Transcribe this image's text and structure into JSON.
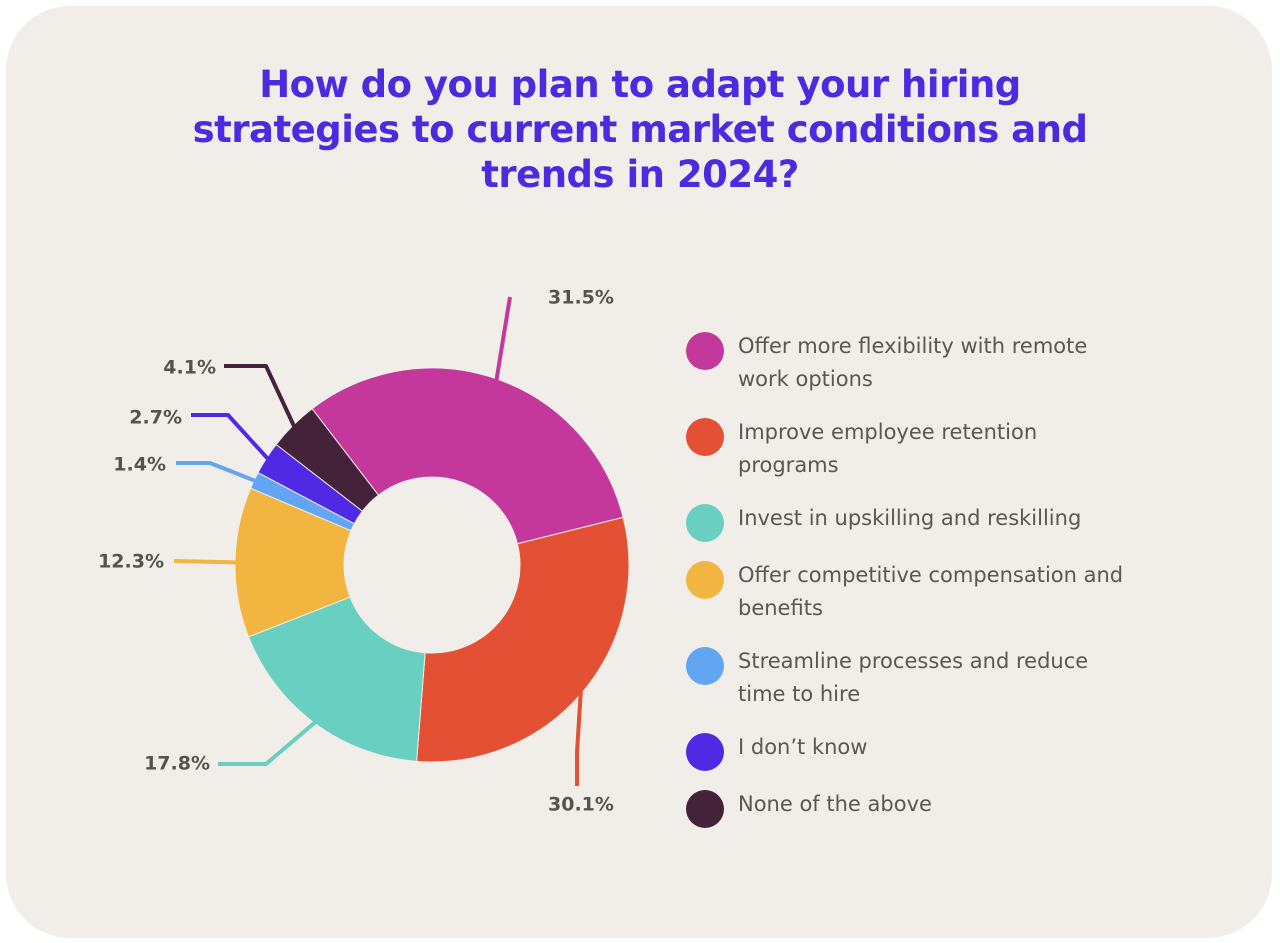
{
  "colors": {
    "background": "#f1eeea",
    "title": "#4b2ae0",
    "label_text": "#55534f"
  },
  "chart_data": {
    "type": "pie",
    "donut": true,
    "title": "How do you plan to adapt your hiring strategies to current market conditions and trends in 2024?",
    "legend_position": "right",
    "slices": [
      {
        "label": "Offer more flexibility with remote work options",
        "value": 31.5,
        "value_label": "31.5%",
        "color": "#c4379b"
      },
      {
        "label": "Improve employee retention programs",
        "value": 30.1,
        "value_label": "30.1%",
        "color": "#e35034"
      },
      {
        "label": "Invest in upskilling and reskilling",
        "value": 17.8,
        "value_label": "17.8%",
        "color": "#69cfc0"
      },
      {
        "label": "Offer competitive compensation and benefits",
        "value": 12.3,
        "value_label": "12.3%",
        "color": "#f2b53f"
      },
      {
        "label": "Streamline processes and reduce time to hire",
        "value": 1.4,
        "value_label": "1.4%",
        "color": "#62a5f2"
      },
      {
        "label": "I don’t know",
        "value": 2.7,
        "value_label": "2.7%",
        "color": "#5029e4"
      },
      {
        "label": "None of the above",
        "value": 4.1,
        "value_label": "4.1%",
        "color": "#44233a"
      }
    ]
  }
}
